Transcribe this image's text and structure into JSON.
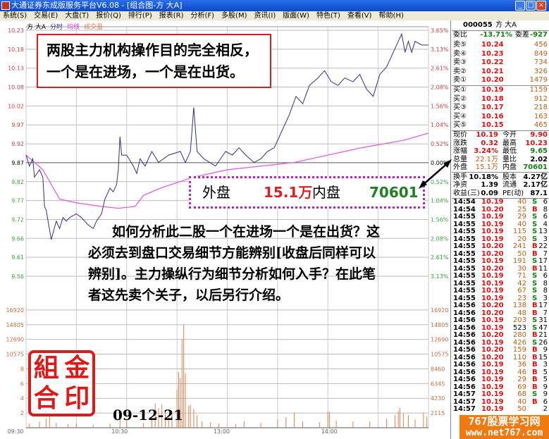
{
  "window": {
    "title": "大通证券东成版服务平台V6.08 - [组合图-方  大A]",
    "buttons": [
      "_",
      "□",
      "×"
    ]
  },
  "menu": [
    "系统(S)",
    "交易(E)",
    "大盘(T)",
    "报价(Q)",
    "排行(P)",
    "报表(R)",
    "分析(F)",
    "多股(M)",
    "资讯(I)",
    "版面(W)",
    "特色(T)",
    "查看(V)",
    "帮助(H)"
  ],
  "chart_header": {
    "name": "方  大A",
    "tab": "分时",
    "avg_label": "均线",
    "vol_label": "成交量"
  },
  "annotations": {
    "top_box": [
      "两股主力机构操作目的完全相反，",
      "一个是在进场，一个是在出货。"
    ],
    "paragraph": [
      "　　如何分析此二股一个在进场一个是在出货？这",
      "必须去到盘口交易细节方能辨别[收盘后同样可以",
      "辨别]。主力操纵行为细节分析如何入手？在此笔",
      "者这先卖个关子，以后另行介绍。"
    ],
    "callout": {
      "outer_label": "外盘",
      "outer_value": "15.1万",
      "inner_label": "内盘",
      "inner_value": "70601"
    },
    "stamp": [
      "組",
      "金",
      "合",
      "印"
    ],
    "date": "09-12-21",
    "watermark": [
      "767股票学习网",
      "www.net767.com"
    ]
  },
  "chart_data": {
    "type": "line",
    "prev_close": 9.87,
    "price_ticks": [
      "10.23",
      "10.18",
      "10.13",
      "10.08",
      "10.02",
      "9.97",
      "9.92",
      "9.87",
      "9.82",
      "9.77",
      "9.72",
      "9.66",
      "9.61",
      "9.56"
    ],
    "pct_ticks": [
      "3.65%",
      "3.13%",
      "2.61%",
      "2.08%",
      "1.56%",
      "1.04%",
      "0.52%",
      "0.00%",
      "0.52%",
      "1.04%",
      "1.56%",
      "2.08%",
      "2.61%",
      "3.13%"
    ],
    "vol_ticks": [
      "16920",
      "14805",
      "12690",
      "10575",
      "8460",
      "6345",
      "4230",
      "2115"
    ],
    "vol_ticks_left": [
      "16920",
      "14805",
      "12690",
      "10575",
      "8",
      "6",
      "4",
      "2"
    ],
    "time_ticks": [
      "09:30",
      "10:30",
      "13:00",
      "14:00"
    ],
    "ylim": [
      9.56,
      10.23
    ],
    "vol_ylim": [
      0,
      19035
    ],
    "colors": {
      "price": "#303080",
      "avg": "#e060e0",
      "volume": "#e08050",
      "up": "#e01010",
      "down": "#108010"
    },
    "series": [
      {
        "key": "price",
        "points": [
          [
            "09:30",
            9.89
          ],
          [
            "09:32",
            9.86
          ],
          [
            "09:34",
            9.88
          ],
          [
            "09:35",
            9.83
          ],
          [
            "09:38",
            9.85
          ],
          [
            "09:40",
            9.83
          ],
          [
            "09:41",
            9.75
          ],
          [
            "09:42",
            9.74
          ],
          [
            "09:45",
            9.66
          ],
          [
            "09:48",
            9.71
          ],
          [
            "09:50",
            9.69
          ],
          [
            "09:52",
            9.72
          ],
          [
            "09:54",
            9.71
          ],
          [
            "09:56",
            9.72
          ],
          [
            "10:00",
            9.73
          ],
          [
            "10:03",
            9.72
          ],
          [
            "10:07",
            9.7
          ],
          [
            "10:10",
            9.69
          ],
          [
            "10:12",
            9.71
          ],
          [
            "10:15",
            9.73
          ],
          [
            "10:17",
            9.77
          ],
          [
            "10:20",
            9.8
          ],
          [
            "10:22",
            9.79
          ],
          [
            "10:24",
            9.81
          ],
          [
            "10:25",
            9.85
          ],
          [
            "10:26",
            9.94
          ],
          [
            "10:27",
            9.89
          ],
          [
            "10:30",
            9.89
          ],
          [
            "10:34",
            9.86
          ],
          [
            "10:36",
            9.84
          ],
          [
            "10:38",
            9.88
          ],
          [
            "10:41",
            9.86
          ],
          [
            "10:45",
            9.9
          ],
          [
            "10:49",
            9.87
          ],
          [
            "10:55",
            9.89
          ],
          [
            "11:02",
            9.9
          ],
          [
            "11:05",
            9.87
          ],
          [
            "11:08",
            9.9
          ],
          [
            "11:10",
            10.02
          ],
          [
            "11:12",
            9.9
          ],
          [
            "11:16",
            9.88
          ],
          [
            "11:23",
            9.86
          ],
          [
            "11:29",
            9.9
          ],
          [
            "13:03",
            9.89
          ],
          [
            "13:07",
            9.91
          ],
          [
            "13:11",
            9.89
          ],
          [
            "13:16",
            9.87
          ],
          [
            "13:20",
            9.88
          ],
          [
            "13:24",
            9.9
          ],
          [
            "13:28",
            9.91
          ],
          [
            "13:33",
            9.96
          ],
          [
            "13:37",
            10.0
          ],
          [
            "13:41",
            10.05
          ],
          [
            "13:45",
            10.03
          ],
          [
            "13:49",
            10.08
          ],
          [
            "13:54",
            10.1
          ],
          [
            "13:58",
            10.12
          ],
          [
            "14:02",
            10.09
          ],
          [
            "14:06",
            10.08
          ],
          [
            "14:10",
            10.1
          ],
          [
            "14:15",
            10.09
          ],
          [
            "14:19",
            10.11
          ],
          [
            "14:23",
            10.07
          ],
          [
            "14:27",
            10.05
          ],
          [
            "14:31",
            10.11
          ],
          [
            "14:35",
            10.13
          ],
          [
            "14:40",
            10.18
          ],
          [
            "14:44",
            10.22
          ],
          [
            "14:46",
            10.17
          ],
          [
            "14:48",
            10.2
          ],
          [
            "14:50",
            10.17
          ],
          [
            "14:52",
            10.2
          ],
          [
            "14:56",
            10.19
          ],
          [
            "15:00",
            10.19
          ]
        ]
      },
      {
        "key": "avg",
        "points": [
          [
            "09:30",
            9.89
          ],
          [
            "09:40",
            9.85
          ],
          [
            "09:50",
            9.77
          ],
          [
            "10:00",
            9.76
          ],
          [
            "10:15",
            9.75
          ],
          [
            "10:25",
            9.745
          ],
          [
            "10:35",
            9.75
          ],
          [
            "10:40",
            9.78
          ],
          [
            "10:50",
            9.8
          ],
          [
            "11:10",
            9.83
          ],
          [
            "11:30",
            9.85
          ],
          [
            "13:20",
            9.86
          ],
          [
            "13:40",
            9.87
          ],
          [
            "14:00",
            9.89
          ],
          [
            "14:20",
            9.91
          ],
          [
            "14:45",
            9.93
          ],
          [
            "15:00",
            9.95
          ]
        ]
      },
      {
        "key": "volume",
        "points": [
          [
            "09:32",
            600
          ],
          [
            "09:38",
            900
          ],
          [
            "09:42",
            1300
          ],
          [
            "09:44",
            1800
          ],
          [
            "09:48",
            700
          ],
          [
            "09:55",
            500
          ],
          [
            "10:00",
            600
          ],
          [
            "10:10",
            400
          ],
          [
            "10:20",
            600
          ],
          [
            "10:26",
            1600
          ],
          [
            "10:30",
            900
          ],
          [
            "10:40",
            700
          ],
          [
            "10:45",
            1500
          ],
          [
            "10:47",
            3500
          ],
          [
            "10:49",
            2800
          ],
          [
            "10:51",
            3300
          ],
          [
            "10:53",
            2400
          ],
          [
            "10:55",
            1500
          ],
          [
            "10:57",
            2000
          ],
          [
            "11:00",
            5500
          ],
          [
            "11:01",
            8000
          ],
          [
            "11:02",
            7200
          ],
          [
            "11:03",
            12690
          ],
          [
            "11:04",
            14805
          ],
          [
            "11:05",
            7800
          ],
          [
            "11:07",
            3200
          ],
          [
            "11:08",
            3300
          ],
          [
            "11:10",
            2700
          ],
          [
            "11:12",
            1800
          ],
          [
            "11:15",
            900
          ],
          [
            "11:20",
            800
          ],
          [
            "11:25",
            600
          ],
          [
            "13:05",
            500
          ],
          [
            "13:10",
            900
          ],
          [
            "13:20",
            700
          ],
          [
            "13:30",
            1200
          ],
          [
            "13:35",
            1500
          ],
          [
            "13:40",
            2200
          ],
          [
            "13:45",
            900
          ],
          [
            "13:55",
            800
          ],
          [
            "14:00",
            2300
          ],
          [
            "14:01",
            2300
          ],
          [
            "14:05",
            1000
          ],
          [
            "14:15",
            900
          ],
          [
            "14:25",
            900
          ],
          [
            "14:35",
            1300
          ],
          [
            "14:40",
            1800
          ],
          [
            "14:42",
            2400
          ],
          [
            "14:43",
            2900
          ],
          [
            "14:45",
            2100
          ],
          [
            "14:48",
            1800
          ],
          [
            "14:52",
            1200
          ],
          [
            "14:57",
            2200
          ],
          [
            "14:59",
            1600
          ]
        ]
      }
    ]
  },
  "quote": {
    "code": "000055",
    "name": "方  大A",
    "webi_label": "委比",
    "webi": "-13.71%",
    "weicha_label": "委差",
    "weicha": "-927",
    "asks": [
      {
        "label": "卖⑤",
        "price": "10.24",
        "vol": "456"
      },
      {
        "label": "卖④",
        "price": "10.23",
        "vol": "849"
      },
      {
        "label": "卖③",
        "price": "10.22",
        "vol": "734"
      },
      {
        "label": "卖②",
        "price": "10.21",
        "vol": "326"
      },
      {
        "label": "卖①",
        "price": "10.20",
        "vol": "1479"
      }
    ],
    "bids": [
      {
        "label": "买①",
        "price": "10.19",
        "vol": "1159"
      },
      {
        "label": "买②",
        "price": "10.18",
        "vol": "912"
      },
      {
        "label": "买③",
        "price": "10.17",
        "vol": "218"
      },
      {
        "label": "买④",
        "price": "10.16",
        "vol": "163"
      },
      {
        "label": "买⑤",
        "price": "10.15",
        "vol": "465"
      }
    ],
    "stats": [
      {
        "l1": "现价",
        "v1": "10.19",
        "c1": "red",
        "l2": "今开",
        "v2": "9.90",
        "c2": "red"
      },
      {
        "l1": "涨跌",
        "v1": "0.32",
        "c1": "red",
        "l2": "最高",
        "v2": "10.23",
        "c2": "red"
      },
      {
        "l1": "涨幅",
        "v1": "3.24%",
        "c1": "red",
        "l2": "最低",
        "v2": "9.65",
        "c2": "grn"
      },
      {
        "l1": "总量",
        "v1": "22.1万",
        "c1": "org",
        "l2": "量比",
        "v2": "2.02",
        "c2": "blk"
      },
      {
        "l1": "外盘",
        "v1": "15.1万",
        "c1": "org",
        "l2": "内盘",
        "v2": "70601",
        "c2": "grn"
      },
      {
        "l1": "换手",
        "v1": "10.18%",
        "c1": "blk",
        "l2": "股本",
        "v2": "4.27亿",
        "c2": "blk"
      },
      {
        "l1": "净资",
        "v1": "1.39",
        "c1": "blk",
        "l2": "流通",
        "v2": "2.17亿",
        "c2": "blk"
      },
      {
        "l1": "收益(三)",
        "v1": "0.09",
        "c1": "blk",
        "l2": "PE(动)",
        "v2": "87.1",
        "c2": "blk"
      }
    ],
    "ticks": [
      [
        "14:54",
        "10.19",
        "40",
        "S",
        "6"
      ],
      [
        "14:54",
        "10.20",
        "25",
        "B",
        "8"
      ],
      [
        "14:55",
        "10.19",
        "29",
        "S",
        "6"
      ],
      [
        "14:55",
        "10.19",
        "40",
        "S",
        "4"
      ],
      [
        "14:55",
        "10.19",
        "115",
        "S",
        "13"
      ],
      [
        "14:55",
        "10.19",
        "20",
        "S",
        "3"
      ],
      [
        "14:55",
        "10.20",
        "241",
        "B",
        "22"
      ],
      [
        "14:55",
        "10.20",
        "50",
        "B",
        "7"
      ],
      [
        "14:55",
        "10.19",
        "191",
        "S",
        "17"
      ],
      [
        "14:55",
        "10.20",
        "30",
        "B",
        "11"
      ],
      [
        "14:55",
        "10.19",
        "71",
        "S",
        "6"
      ],
      [
        "14:55",
        "10.19",
        "42",
        "S",
        "8"
      ],
      [
        "14:55",
        "10.19",
        "67",
        "S",
        "8"
      ],
      [
        "14:55",
        "10.19",
        "23",
        "S",
        "3"
      ],
      [
        "14:56",
        "10.20",
        "138",
        "B",
        "17"
      ],
      [
        "14:56",
        "10.20",
        "48",
        "B",
        "7"
      ],
      [
        "14:56",
        "10.19",
        "203",
        "S",
        "31"
      ],
      [
        "14:56",
        "10.19",
        "523",
        "S",
        "47"
      ],
      [
        "14:56",
        "10.20",
        "280",
        "B",
        "21"
      ],
      [
        "14:56",
        "10.19",
        "426",
        "S",
        "26"
      ],
      [
        "14:56",
        "10.20",
        "159",
        "B",
        "9"
      ],
      [
        "14:56",
        "10.20",
        "110",
        "B",
        "15"
      ],
      [
        "14:56",
        "10.19",
        "36",
        "B",
        "3"
      ],
      [
        "14:56",
        "10.19",
        "46",
        "B",
        "5"
      ],
      [
        "14:56",
        "10.19",
        "29",
        "B",
        "5"
      ],
      [
        "14:56",
        "10.19",
        "69",
        "B",
        "9"
      ],
      [
        "14:57",
        "10.19",
        "68",
        "S",
        "9"
      ],
      [
        "14:57",
        "10.19",
        "40",
        "B",
        "6"
      ],
      [
        "14:57",
        "10.19",
        "50",
        "",
        "2"
      ]
    ]
  }
}
